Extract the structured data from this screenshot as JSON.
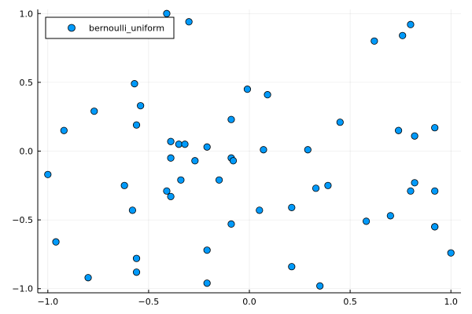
{
  "chart_data": {
    "type": "scatter",
    "title": "",
    "xlabel": "",
    "ylabel": "",
    "xlim": [
      -1.05,
      1.05
    ],
    "ylim": [
      -1.03,
      1.03
    ],
    "xticks": [
      -1.0,
      -0.5,
      0.0,
      0.5,
      1.0
    ],
    "xtick_labels": [
      "−1.0",
      "−0.5",
      "0.0",
      "0.5",
      "1.0"
    ],
    "yticks": [
      -1.0,
      -0.5,
      0.0,
      0.5,
      1.0
    ],
    "ytick_labels": [
      "−1.0",
      "−0.5",
      "0.0",
      "0.5",
      "1.0"
    ],
    "grid": true,
    "legend_position": "top-left",
    "series": [
      {
        "name": "bernoulli_uniform",
        "color": "#009AFA",
        "x": [
          -0.41,
          -0.3,
          -0.57,
          -0.54,
          -0.77,
          -0.92,
          -0.56,
          -0.39,
          -0.35,
          -0.32,
          -0.39,
          -0.27,
          -0.21,
          -0.34,
          -0.62,
          -0.41,
          -0.39,
          -0.58,
          -1.0,
          -0.96,
          -0.8,
          -0.56,
          -0.56,
          -0.21,
          -0.21,
          -0.15,
          -0.09,
          -0.09,
          -0.08,
          -0.09,
          -0.01,
          0.07,
          0.09,
          0.05,
          0.21,
          0.21,
          0.29,
          0.33,
          0.35,
          0.39,
          0.45,
          0.58,
          0.62,
          0.7,
          0.74,
          0.76,
          0.8,
          0.8,
          0.82,
          0.82,
          0.92,
          0.92,
          0.92,
          0.92,
          1.0
        ],
        "y": [
          1.0,
          0.94,
          0.49,
          0.33,
          0.29,
          0.15,
          0.19,
          0.07,
          0.05,
          0.05,
          -0.05,
          -0.07,
          0.03,
          -0.21,
          -0.25,
          -0.29,
          -0.33,
          -0.43,
          -0.17,
          -0.66,
          -0.92,
          -0.78,
          -0.88,
          -0.72,
          -0.96,
          -0.21,
          0.23,
          -0.05,
          -0.07,
          -0.53,
          0.45,
          0.01,
          0.41,
          -0.43,
          -0.41,
          -0.84,
          0.01,
          -0.27,
          -0.98,
          -0.25,
          0.21,
          -0.51,
          0.8,
          -0.47,
          0.15,
          0.84,
          0.92,
          -0.29,
          0.11,
          -0.23,
          0.17,
          -0.29,
          -0.55,
          -0.55,
          -0.74
        ]
      }
    ]
  }
}
